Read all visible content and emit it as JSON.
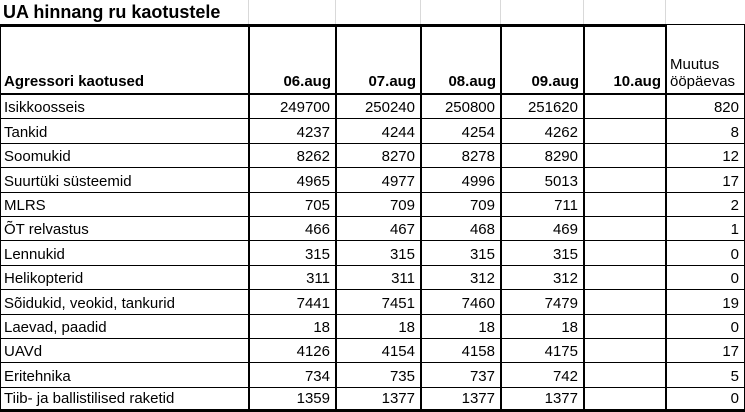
{
  "title": "UA hinnang ru kaotustele",
  "table": {
    "corner_label": "Agressori kaotused",
    "date_columns": [
      "06.aug",
      "07.aug",
      "08.aug",
      "09.aug",
      "10.aug"
    ],
    "change_column_label": "Muutus ööpäevas",
    "rows": [
      {
        "label": "Isikkoosseis",
        "values": [
          "249700",
          "250240",
          "250800",
          "251620",
          ""
        ],
        "change": "820"
      },
      {
        "label": "Tankid",
        "values": [
          "4237",
          "4244",
          "4254",
          "4262",
          ""
        ],
        "change": "8"
      },
      {
        "label": "Soomukid",
        "values": [
          "8262",
          "8270",
          "8278",
          "8290",
          ""
        ],
        "change": "12"
      },
      {
        "label": "Suurtüki süsteemid",
        "values": [
          "4965",
          "4977",
          "4996",
          "5013",
          ""
        ],
        "change": "17"
      },
      {
        "label": "MLRS",
        "values": [
          "705",
          "709",
          "709",
          "711",
          ""
        ],
        "change": "2"
      },
      {
        "label": "ÕT relvastus",
        "values": [
          "466",
          "467",
          "468",
          "469",
          ""
        ],
        "change": "1"
      },
      {
        "label": "Lennukid",
        "values": [
          "315",
          "315",
          "315",
          "315",
          ""
        ],
        "change": "0"
      },
      {
        "label": "Helikopterid",
        "values": [
          "311",
          "311",
          "312",
          "312",
          ""
        ],
        "change": "0"
      },
      {
        "label": "Sõidukid, veokid, tankurid",
        "values": [
          "7441",
          "7451",
          "7460",
          "7479",
          ""
        ],
        "change": "19"
      },
      {
        "label": "Laevad, paadid",
        "values": [
          "18",
          "18",
          "18",
          "18",
          ""
        ],
        "change": "0"
      },
      {
        "label": "UAVd",
        "values": [
          "4126",
          "4154",
          "4158",
          "4175",
          ""
        ],
        "change": "17"
      },
      {
        "label": "Eritehnika",
        "values": [
          "734",
          "735",
          "737",
          "742",
          ""
        ],
        "change": "5"
      },
      {
        "label": "Tiib- ja ballistilised raketid",
        "values": [
          "1359",
          "1377",
          "1377",
          "1377",
          ""
        ],
        "change": "0"
      }
    ]
  },
  "colors": {
    "border": "#000000",
    "faint_grid": "#d9d9d9",
    "background": "#ffffff",
    "text": "#000000"
  }
}
